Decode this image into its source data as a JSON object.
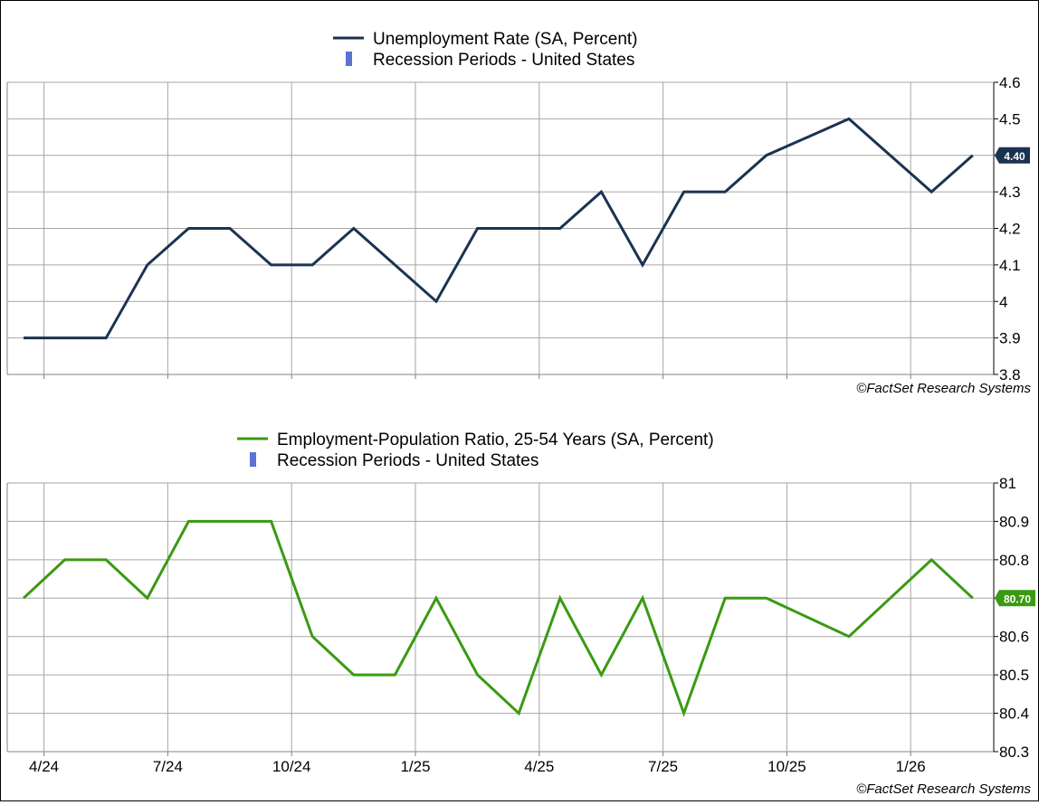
{
  "chart_data": [
    {
      "type": "line",
      "title": "",
      "xlabel": "",
      "ylabel": "",
      "series": [
        {
          "name": "Unemployment Rate (SA, Percent)",
          "color": "#1b3350",
          "values": [
            3.9,
            3.9,
            3.9,
            4.1,
            4.2,
            4.2,
            4.1,
            4.1,
            4.2,
            4.1,
            4.0,
            4.2,
            4.2,
            4.2,
            4.3,
            4.1,
            4.3,
            4.3,
            4.4,
            4.45,
            4.5,
            4.4,
            4.3,
            4.4
          ]
        }
      ],
      "months": [
        "2024-03",
        "2024-04",
        "2024-05",
        "2024-06",
        "2024-07",
        "2024-08",
        "2024-09",
        "2024-10",
        "2024-11",
        "2024-12",
        "2025-01",
        "2025-02",
        "2025-03",
        "2025-04",
        "2025-05",
        "2025-06",
        "2025-07",
        "2025-08",
        "2025-09",
        "2025-10",
        "2025-11",
        "2025-12",
        "2026-01",
        "2026-02"
      ],
      "legend": [
        {
          "label": "Unemployment Rate (SA, Percent)",
          "kind": "line",
          "color": "#1b3350"
        },
        {
          "label": "Recession Periods - United States",
          "kind": "bar",
          "color": "#5b72d6"
        }
      ],
      "ylim": [
        3.8,
        4.6
      ],
      "yticks": [
        "3.8",
        "3.9",
        "4",
        "4.1",
        "4.2",
        "4.3",
        "4.4",
        "4.5",
        "4.6"
      ],
      "last_value_label": "4.40",
      "grid": true,
      "source": "©FactSet Research Systems"
    },
    {
      "type": "line",
      "title": "",
      "xlabel": "",
      "ylabel": "",
      "series": [
        {
          "name": "Employment-Population Ratio, 25-54 Years (SA, Percent)",
          "color": "#3a9a12",
          "values": [
            80.7,
            80.8,
            80.8,
            80.7,
            80.9,
            80.9,
            80.9,
            80.6,
            80.5,
            80.5,
            80.7,
            80.5,
            80.4,
            80.7,
            80.5,
            80.7,
            80.4,
            80.7,
            80.7,
            80.65,
            80.6,
            80.7,
            80.8,
            80.7
          ]
        }
      ],
      "months": [
        "2024-03",
        "2024-04",
        "2024-05",
        "2024-06",
        "2024-07",
        "2024-08",
        "2024-09",
        "2024-10",
        "2024-11",
        "2024-12",
        "2025-01",
        "2025-02",
        "2025-03",
        "2025-04",
        "2025-05",
        "2025-06",
        "2025-07",
        "2025-08",
        "2025-09",
        "2025-10",
        "2025-11",
        "2025-12",
        "2026-01",
        "2026-02"
      ],
      "legend": [
        {
          "label": "Employment-Population Ratio, 25-54 Years (SA, Percent)",
          "kind": "line",
          "color": "#3a9a12"
        },
        {
          "label": "Recession Periods - United States",
          "kind": "bar",
          "color": "#5b72d6"
        }
      ],
      "ylim": [
        80.3,
        81.0
      ],
      "yticks": [
        "80.3",
        "80.4",
        "80.5",
        "80.6",
        "80.7",
        "80.8",
        "80.9",
        "81"
      ],
      "xticks": [
        "4/24",
        "7/24",
        "10/24",
        "1/25",
        "4/25",
        "7/25",
        "10/25",
        "1/26"
      ],
      "last_value_label": "80.70",
      "grid": true,
      "source": "©FactSet Research Systems"
    }
  ]
}
